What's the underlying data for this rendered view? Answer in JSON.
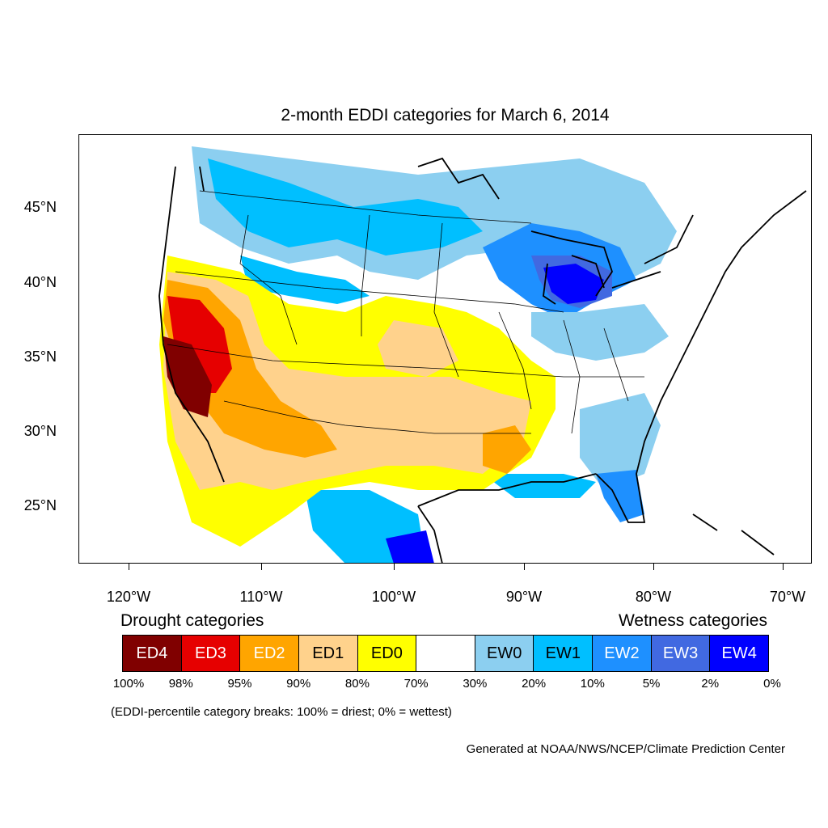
{
  "title": "2-month EDDI categories for March 6, 2014",
  "axes": {
    "lat_labels": [
      "45°N",
      "40°N",
      "35°N",
      "30°N",
      "25°N"
    ],
    "lon_labels": [
      "120°W",
      "110°W",
      "100°W",
      "90°W",
      "80°W",
      "70°W"
    ]
  },
  "legend": {
    "drought_heading": "Drought categories",
    "wetness_heading": "Wetness categories",
    "categories": [
      {
        "label": "ED4",
        "color": "#800000",
        "text_color": "#ffffff"
      },
      {
        "label": "ED3",
        "color": "#e60000",
        "text_color": "#ffffff"
      },
      {
        "label": "ED2",
        "color": "#ffa500",
        "text_color": "#ffffff"
      },
      {
        "label": "ED1",
        "color": "#ffd28c",
        "text_color": "#000000"
      },
      {
        "label": "ED0",
        "color": "#ffff00",
        "text_color": "#000000"
      },
      {
        "label": "",
        "color": "#ffffff",
        "text_color": "#000000"
      },
      {
        "label": "EW0",
        "color": "#8ccff0",
        "text_color": "#000000"
      },
      {
        "label": "EW1",
        "color": "#00bfff",
        "text_color": "#000000"
      },
      {
        "label": "EW2",
        "color": "#1e90ff",
        "text_color": "#ffffff"
      },
      {
        "label": "EW3",
        "color": "#4169e1",
        "text_color": "#ffffff"
      },
      {
        "label": "EW4",
        "color": "#0000ff",
        "text_color": "#ffffff"
      }
    ],
    "breaks": [
      "100%",
      "98%",
      "95%",
      "90%",
      "80%",
      "70%",
      "30%",
      "20%",
      "10%",
      "5%",
      "2%",
      "0%"
    ],
    "note": "(EDDI-percentile category breaks: 100% = driest; 0% = wettest)"
  },
  "credit": "Generated at NOAA/NWS/NCEP/Climate Prediction Center"
}
